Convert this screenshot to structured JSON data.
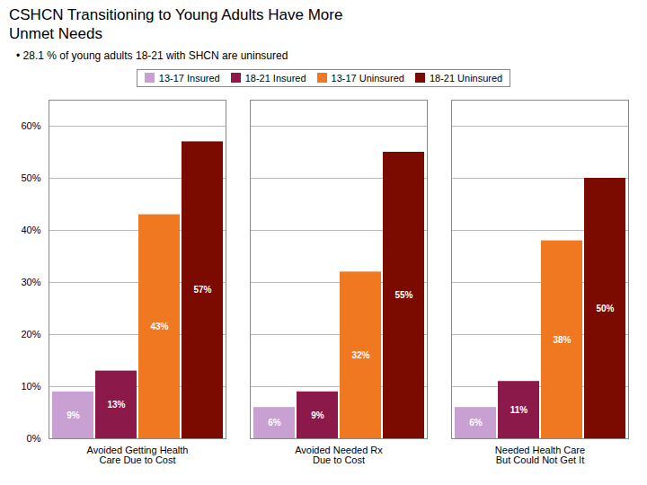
{
  "chart_data": {
    "type": "bar",
    "title": "CSHCN Transitioning to Young Adults Have More\nUnmet Needs",
    "subtitle": "• 28.1 % of young adults 18-21 with SHCN are uninsured",
    "categories": [
      "Avoided Getting Health\nCare Due to Cost",
      "Avoided Needed Rx\nDue to Cost",
      "Needed Health Care\nBut Could Not Get It"
    ],
    "series": [
      {
        "name": "13-17 Insured",
        "color": "#c8a0d2",
        "values": [
          9,
          6,
          6
        ],
        "value_labels": [
          "9%",
          "6%",
          "6%"
        ]
      },
      {
        "name": "18-21 Insured",
        "color": "#8b1a4a",
        "values": [
          13,
          9,
          11
        ],
        "value_labels": [
          "13%",
          "9%",
          "11%"
        ]
      },
      {
        "name": "13-17 Uninsured",
        "color": "#f07820",
        "values": [
          43,
          32,
          38
        ],
        "value_labels": [
          "43%",
          "32%",
          "38%"
        ]
      },
      {
        "name": "18-21 Uninsured",
        "color": "#7b0a00",
        "values": [
          57,
          55,
          50
        ],
        "value_labels": [
          "57%",
          "55%",
          "50%"
        ]
      }
    ],
    "ylim": [
      0,
      65
    ],
    "yticks": [
      {
        "value": 0,
        "label": "0%"
      },
      {
        "value": 10,
        "label": "10%"
      },
      {
        "value": 20,
        "label": "20%"
      },
      {
        "value": 30,
        "label": "30%"
      },
      {
        "value": 40,
        "label": "40%"
      },
      {
        "value": 50,
        "label": "50%"
      },
      {
        "value": 60,
        "label": "60%"
      }
    ],
    "grid": true,
    "legend": "top",
    "data_labels": true
  }
}
